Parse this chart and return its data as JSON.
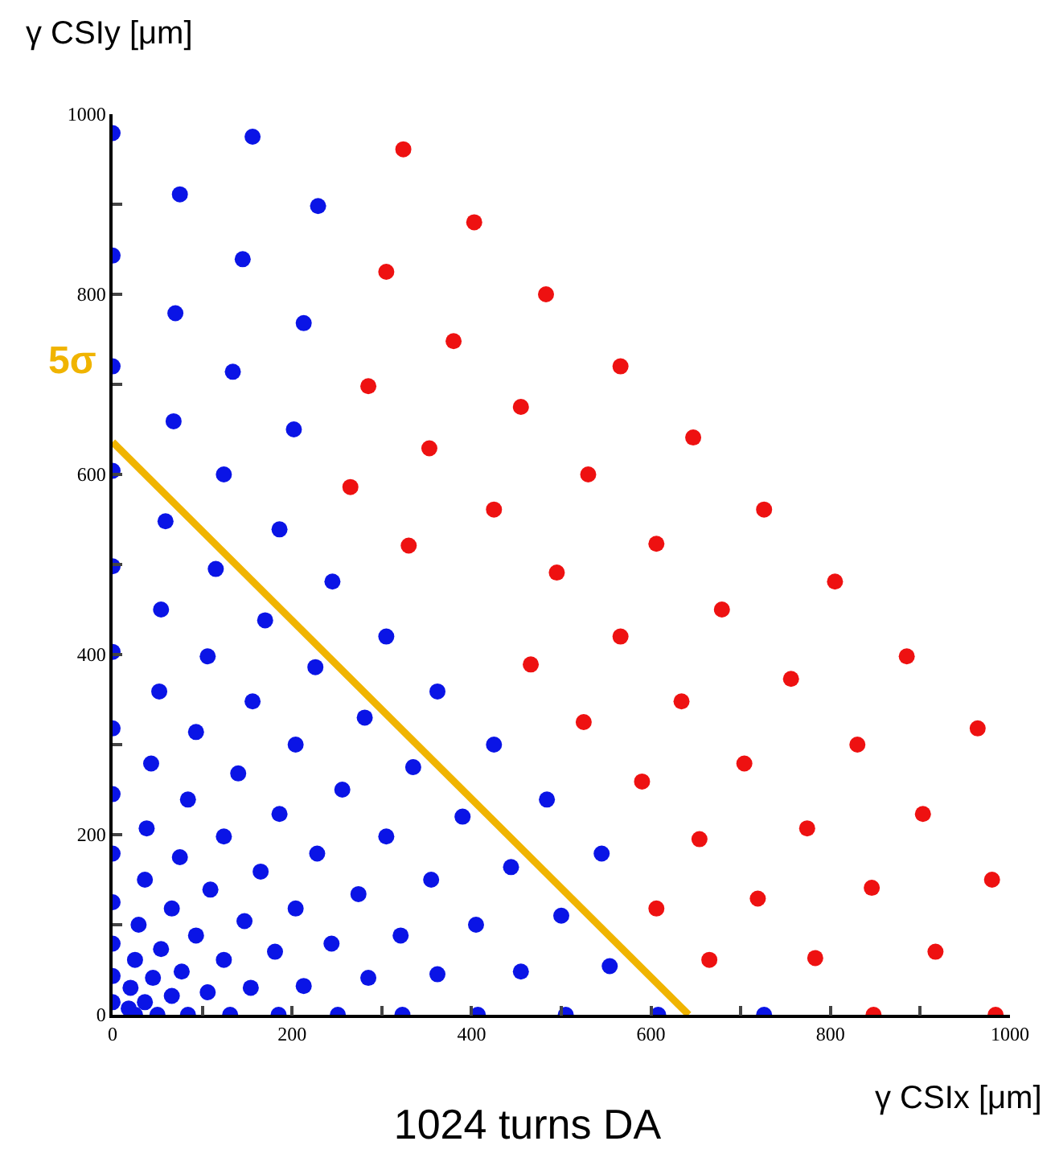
{
  "chart_data": {
    "type": "scatter",
    "title": "1024 turns DA",
    "xlabel": "γ CSIx [μm]",
    "ylabel": "γ CSIy [μm]",
    "marker": "circle",
    "grid": false,
    "legend": false,
    "xlim": [
      0,
      1000
    ],
    "ylim": [
      0,
      1000
    ],
    "xticks": [
      0,
      {
        "value": 100,
        "label": null
      },
      200,
      {
        "value": 300,
        "label": null
      },
      400,
      {
        "value": 500,
        "label": null
      },
      600,
      {
        "value": 700,
        "label": null
      },
      800,
      {
        "value": 900,
        "label": null
      },
      1000
    ],
    "yticks": [
      0,
      {
        "value": 100,
        "label": null
      },
      200,
      {
        "value": 300,
        "label": null
      },
      400,
      {
        "value": 500,
        "label": null
      },
      600,
      {
        "value": 700,
        "label": null
      },
      800,
      {
        "value": 900,
        "label": null
      },
      1000
    ],
    "series": [
      {
        "color": "#0a14e6",
        "x": [
          0,
          156,
          75,
          229,
          0,
          145,
          70,
          213,
          0,
          134,
          68,
          202,
          0,
          124,
          59,
          186,
          0,
          115,
          245,
          54,
          170,
          305,
          0,
          106,
          226,
          52,
          156,
          362,
          281,
          0,
          93,
          204,
          425,
          43,
          140,
          335,
          0,
          84,
          256,
          484,
          186,
          390,
          38,
          124,
          305,
          0,
          75,
          228,
          444,
          545,
          36,
          165,
          355,
          109,
          274,
          0,
          66,
          204,
          500,
          29,
          147,
          405,
          93,
          321,
          0,
          244,
          54,
          25,
          124,
          181,
          77,
          285,
          362,
          455,
          554,
          45,
          0,
          20,
          106,
          154,
          213,
          66,
          36,
          0,
          18,
          25,
          50,
          84,
          131,
          185,
          251,
          323,
          407,
          505,
          608,
          726
        ],
        "values": [
          979,
          975,
          911,
          898,
          843,
          839,
          779,
          768,
          720,
          714,
          659,
          650,
          604,
          600,
          548,
          539,
          498,
          495,
          481,
          450,
          438,
          420,
          403,
          398,
          386,
          359,
          348,
          359,
          330,
          318,
          314,
          300,
          300,
          279,
          268,
          275,
          245,
          239,
          250,
          239,
          223,
          220,
          207,
          198,
          198,
          179,
          175,
          179,
          164,
          179,
          150,
          159,
          150,
          139,
          134,
          125,
          118,
          118,
          110,
          100,
          104,
          100,
          88,
          88,
          79,
          79,
          73,
          61,
          61,
          70,
          48,
          41,
          45,
          48,
          54,
          41,
          43,
          30,
          25,
          30,
          32,
          21,
          14,
          14,
          7,
          0,
          0,
          0,
          0,
          0,
          0,
          0,
          0,
          0,
          0,
          0
        ]
      },
      {
        "color": "#ee1111",
        "x": [
          324,
          403,
          305,
          483,
          380,
          285,
          455,
          353,
          265,
          425,
          330,
          495,
          566,
          647,
          530,
          726,
          606,
          805,
          679,
          566,
          885,
          466,
          756,
          634,
          525,
          964,
          830,
          704,
          590,
          903,
          774,
          654,
          980,
          846,
          719,
          606,
          917,
          783,
          665,
          848,
          984
        ],
        "values": [
          961,
          880,
          825,
          800,
          748,
          698,
          675,
          629,
          586,
          561,
          521,
          491,
          720,
          641,
          600,
          561,
          523,
          481,
          450,
          420,
          398,
          389,
          373,
          348,
          325,
          318,
          300,
          279,
          259,
          223,
          207,
          195,
          150,
          141,
          129,
          118,
          70,
          63,
          61,
          0,
          0
        ]
      },
      {
        "type": "line",
        "name": "5σ",
        "color": "#f0b400",
        "marker": "none",
        "x": [
          0,
          642
        ],
        "values": [
          636,
          0
        ]
      }
    ]
  }
}
